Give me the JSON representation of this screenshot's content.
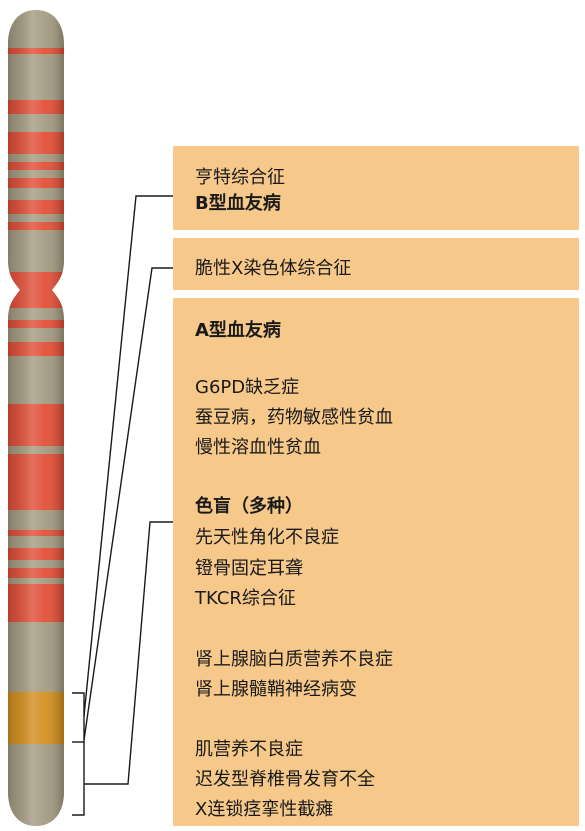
{
  "chromosome_figure": {
    "colors": {
      "panel": "#f6c98a",
      "band_red": "#e2513a",
      "band_base": "#a59c83",
      "highlight_band": "#d39021",
      "connector": "#1a1a1a"
    },
    "panels": [
      {
        "id": "top",
        "lines": [
          {
            "text": "亨特综合征",
            "bold": false
          },
          {
            "text": "B型血友病",
            "bold": true
          }
        ]
      },
      {
        "id": "middle",
        "lines": [
          {
            "text": "脆性X染色体综合征",
            "bold": false
          }
        ]
      },
      {
        "id": "bottom",
        "lines": [
          {
            "text": "A型血友病",
            "bold": true
          },
          {
            "text": "G6PD缺乏症",
            "bold": false
          },
          {
            "text": "蚕豆病，药物敏感性贫血",
            "bold": false
          },
          {
            "text": "慢性溶血性贫血",
            "bold": false
          },
          {
            "text": "色盲（多种）",
            "bold": true
          },
          {
            "text": "先天性角化不良症",
            "bold": false
          },
          {
            "text": "镫骨固定耳聋",
            "bold": false
          },
          {
            "text": "TKCR综合征",
            "bold": false
          },
          {
            "text": "肾上腺脑白质营养不良症",
            "bold": false
          },
          {
            "text": "肾上腺髓鞘神经病变",
            "bold": false
          },
          {
            "text": "肌营养不良症",
            "bold": false
          },
          {
            "text": "迟发型脊椎骨发育不全",
            "bold": false
          },
          {
            "text": "X连锁痉挛性截瘫",
            "bold": false
          }
        ]
      }
    ]
  }
}
